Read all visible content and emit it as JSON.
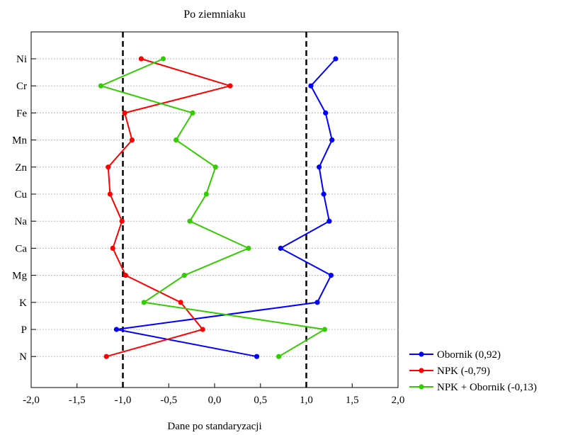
{
  "chart_data": {
    "type": "line",
    "title": "Po ziemniaku",
    "xlabel": "Dane po standaryzacji",
    "ylabel": "",
    "xlim": [
      -2.0,
      2.0
    ],
    "xticks": [
      -2.0,
      -1.5,
      -1.0,
      -0.5,
      0.0,
      0.5,
      1.0,
      1.5,
      2.0
    ],
    "xtick_labels": [
      "-2,0",
      "-1,5",
      "-1,0",
      "-0,5",
      "0,0",
      "0,5",
      "1,0",
      "1,5",
      "2,0"
    ],
    "categories": [
      "Ni",
      "Cr",
      "Fe",
      "Mn",
      "Zn",
      "Cu",
      "Na",
      "Ca",
      "Mg",
      "K",
      "P",
      "N"
    ],
    "orientation": "horizontal-values",
    "grid": "horizontal-dashed",
    "reference_lines": [
      -1.0,
      1.0
    ],
    "legend_position": "bottom-right",
    "series": [
      {
        "name": "Obornik (0,92)",
        "color": "#0000ff",
        "values": [
          1.32,
          1.05,
          1.21,
          1.28,
          1.14,
          1.19,
          1.25,
          0.72,
          1.27,
          1.12,
          -1.07,
          0.46
        ]
      },
      {
        "name": "NPK (-0,79)",
        "color": "#ff0000",
        "values": [
          -0.8,
          0.17,
          -0.98,
          -0.9,
          -1.16,
          -1.14,
          -1.01,
          -1.11,
          -0.97,
          -0.37,
          -0.13,
          -1.18
        ]
      },
      {
        "name": "NPK + Obornik (-0,13)",
        "color": "#33cc00",
        "values": [
          -0.56,
          -1.24,
          -0.24,
          -0.42,
          0.01,
          -0.09,
          -0.27,
          0.37,
          -0.33,
          -0.77,
          1.2,
          0.7
        ]
      }
    ]
  }
}
